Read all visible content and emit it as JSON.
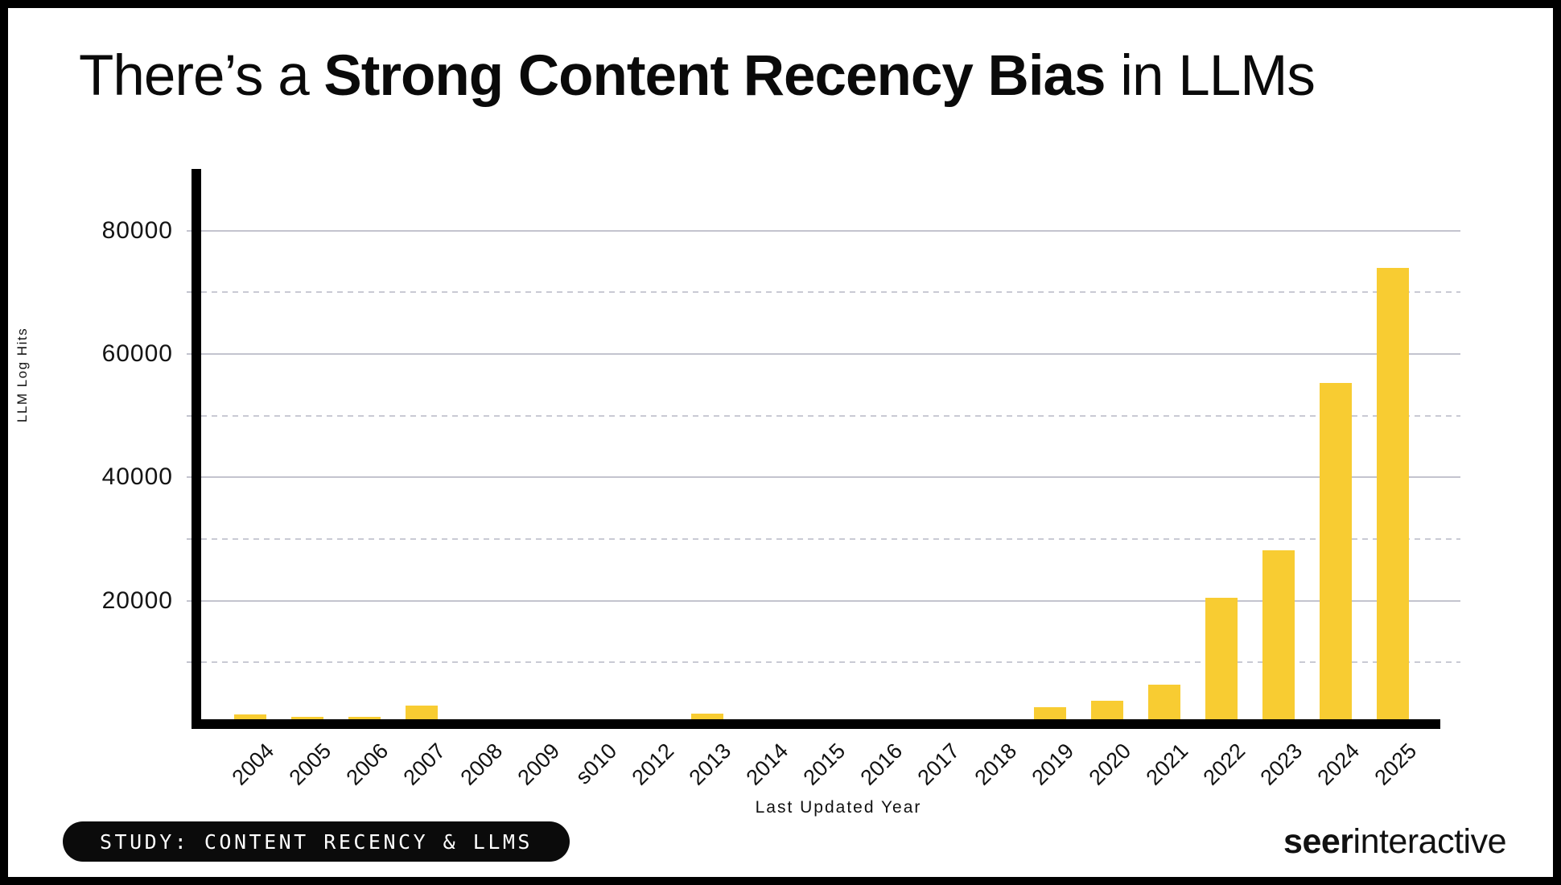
{
  "title": {
    "prefix": "There’s a ",
    "bold": "Strong Content Recency Bias",
    "suffix": " in LLMs"
  },
  "chart_data": {
    "type": "bar",
    "title": "There's a Strong Content Recency Bias in LLMs",
    "categories": [
      "2004",
      "2005",
      "2006",
      "2007",
      "2008",
      "2009",
      "s010",
      "2012",
      "2013",
      "2014",
      "2015",
      "2016",
      "2017",
      "2018",
      "2019",
      "2020",
      "2021",
      "2022",
      "2023",
      "2024",
      "2025"
    ],
    "values": [
      1600,
      1200,
      1200,
      3000,
      0,
      0,
      0,
      0,
      1700,
      0,
      0,
      0,
      0,
      0,
      2800,
      3800,
      6400,
      20500,
      28200,
      55300,
      74000
    ],
    "xlabel": "Last Updated Year",
    "ylabel": "LLM Log Hits",
    "ylim": [
      0,
      90000
    ],
    "yticks_labeled": [
      20000,
      40000,
      60000,
      80000
    ],
    "yticks_dashed": [
      10000,
      30000,
      50000,
      70000
    ],
    "ytick_labels": [
      "20000",
      "40000",
      "60000",
      "80000"
    ],
    "legend": "none",
    "grid": "horizontal major solid, minor dashed",
    "bar_color": "#F8CC32",
    "grid_color_solid": "#C3C4CE",
    "grid_color_dashed": "#C9CAD4",
    "axis_color": "#000000"
  },
  "badge": {
    "label": "STUDY: CONTENT RECENCY & LLMS"
  },
  "logo": {
    "bold": "seer",
    "regular": "interactive"
  }
}
